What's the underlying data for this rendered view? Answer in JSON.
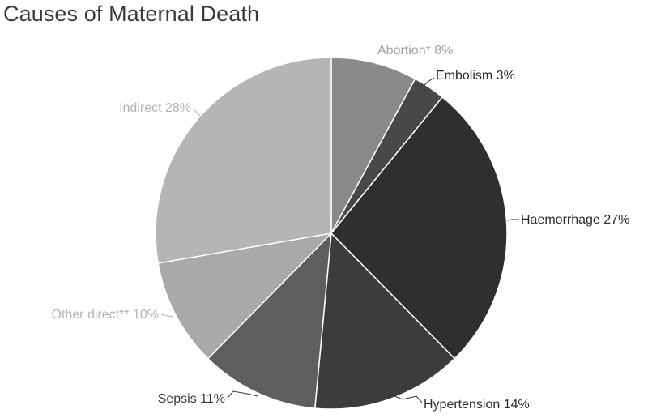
{
  "chart_data": {
    "type": "pie",
    "title": "Causes of Maternal Death",
    "start_angle_deg": 0,
    "direction": "clockwise",
    "slices": [
      {
        "label": "Abortion* 8%",
        "category": "Abortion*",
        "value": 8,
        "color": "#898989",
        "label_color": "#a0a0a0"
      },
      {
        "label": "Embolism 3%",
        "category": "Embolism",
        "value": 3,
        "color": "#484848",
        "label_color": "#2c2c2c"
      },
      {
        "label": "Haemorrhage 27%",
        "category": "Haemorrhage",
        "value": 27,
        "color": "#2f2f2f",
        "label_color": "#2c2c2c"
      },
      {
        "label": "Hypertension 14%",
        "category": "Hypertension",
        "value": 14,
        "color": "#3c3c3c",
        "label_color": "#2c2c2c"
      },
      {
        "label": "Sepsis 11%",
        "category": "Sepsis",
        "value": 11,
        "color": "#5e5e5e",
        "label_color": "#3a3a3a"
      },
      {
        "label": "Other direct** 10%",
        "category": "Other direct**",
        "value": 10,
        "color": "#a9a9a9",
        "label_color": "#b4b4b4"
      },
      {
        "label": "Indirect 28%",
        "category": "Indirect",
        "value": 28,
        "color": "#b5b5b5",
        "label_color": "#b4b4b4"
      }
    ]
  }
}
